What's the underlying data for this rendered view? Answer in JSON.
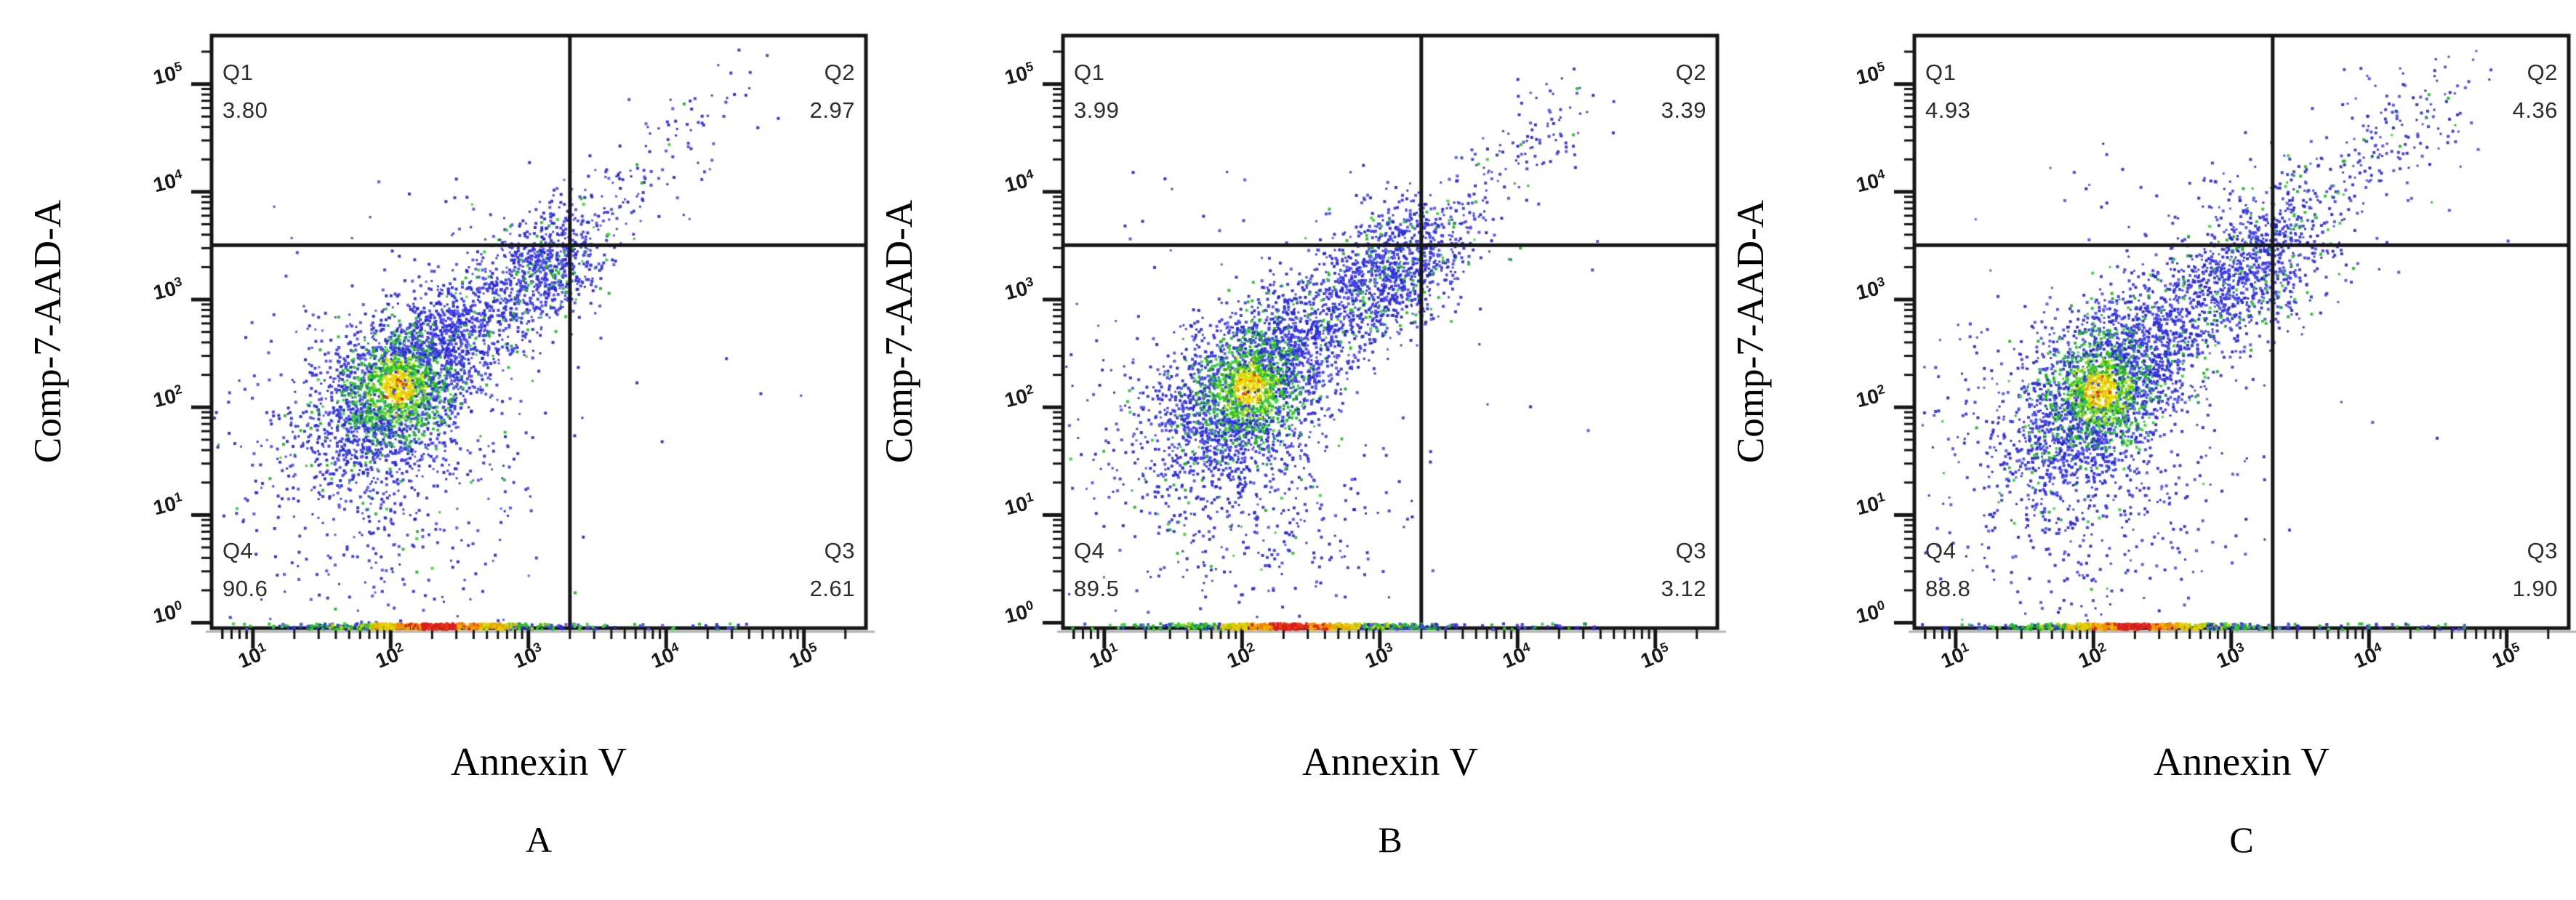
{
  "palette": {
    "blue": [
      "#2626ce",
      "#3b3be8",
      "#5151f2",
      "#2f2fdd"
    ],
    "green": [
      "#25c325",
      "#3ad43a",
      "#1eb41e"
    ],
    "hot_yellow": "#e6e600",
    "hot_orange": "#f0a000",
    "hot_deep_orange": "#f09a00",
    "hot_red": "#e03000",
    "rug_red": "#dc1e1e",
    "rug_orange": "#f08c00",
    "rug_yellow": "#e6d200",
    "line": "#161616",
    "axis_shadow": "#b4b4b4"
  },
  "panels": [
    {
      "letter": "A",
      "x_axis_label": "Annexin V",
      "y_axis_label": "Comp-7-AAD-A",
      "q1_label": "Q1",
      "q1_value": "3.80",
      "q2_label": "Q2",
      "q2_value": "2.97",
      "q3_label": "Q3",
      "q3_value": "2.61",
      "q4_label": "Q4",
      "q4_value": "90.6"
    },
    {
      "letter": "B",
      "x_axis_label": "Annexin V",
      "y_axis_label": "Comp-7-AAD-A",
      "q1_label": "Q1",
      "q1_value": "3.99",
      "q2_label": "Q2",
      "q2_value": "3.39",
      "q3_label": "Q3",
      "q3_value": "3.12",
      "q4_label": "Q4",
      "q4_value": "89.5"
    },
    {
      "letter": "C",
      "x_axis_label": "Annexin V",
      "y_axis_label": "Comp-7-AAD-A",
      "q1_label": "Q1",
      "q1_value": "4.93",
      "q2_label": "Q2",
      "q2_value": "4.36",
      "q3_label": "Q3",
      "q3_value": "1.90",
      "q4_label": "Q4",
      "q4_value": "88.8"
    }
  ],
  "chart_data": [
    {
      "type": "scatter",
      "panel": "A",
      "title": "",
      "xlabel": "Annexin V",
      "ylabel": "Comp-7-AAD-A",
      "x_scale": "log",
      "y_scale": "log",
      "tick_base": "10",
      "x_ticks": [
        1,
        2,
        3,
        4,
        5
      ],
      "y_ticks": [
        0,
        1,
        2,
        3,
        4,
        5
      ],
      "x_range_log": [
        0.7,
        5.45
      ],
      "y_range_log": [
        -0.05,
        5.45
      ],
      "gate_x": 2000,
      "gate_y": 3200,
      "quadrant_percent": {
        "Q1": 3.8,
        "Q2": 2.97,
        "Q3": 2.61,
        "Q4": 90.6
      },
      "seed": 101,
      "clusters": [
        {
          "kind": "core",
          "cx": 2.05,
          "cy": 2.18,
          "sx": 0.3,
          "sy": 0.4,
          "rho": 0.45,
          "n": 2600
        },
        {
          "kind": "blob",
          "cx": 2.1,
          "cy": 1.1,
          "sx": 0.5,
          "sy": 0.55,
          "rho": 0.15,
          "n": 380,
          "green": 0.06
        },
        {
          "kind": "blob",
          "cx": 1.3,
          "cy": 2.0,
          "sx": 0.42,
          "sy": 0.55,
          "rho": 0.2,
          "n": 130,
          "green": 0.08
        },
        {
          "kind": "stream",
          "x1": 2.4,
          "y1": 2.55,
          "x2": 3.28,
          "y2": 3.48,
          "jx": 0.2,
          "jy": 0.24,
          "n": 680,
          "green": 0.1
        },
        {
          "kind": "blob",
          "cx": 3.15,
          "cy": 3.33,
          "sx": 0.24,
          "sy": 0.3,
          "rho": 0.35,
          "n": 430,
          "green": 0.12
        },
        {
          "kind": "stream",
          "x1": 3.35,
          "y1": 3.6,
          "x2": 4.33,
          "y2": 4.78,
          "jx": 0.18,
          "jy": 0.18,
          "n": 120,
          "green": 0.06
        },
        {
          "kind": "blob",
          "cx": 4.5,
          "cy": 5.0,
          "sx": 0.25,
          "sy": 0.2,
          "rho": 0,
          "n": 8,
          "green": 0
        },
        {
          "kind": "uniform",
          "x1": 1.1,
          "y1": 3.55,
          "x2": 2.9,
          "y2": 4.15,
          "n": 12,
          "green": 0.05
        },
        {
          "kind": "uniform",
          "x1": 3.6,
          "y1": 1.6,
          "x2": 5.15,
          "y2": 3.9,
          "n": 5,
          "green": 0
        },
        {
          "kind": "rug",
          "cx": 2.35,
          "sx": 0.55,
          "n": 560
        },
        {
          "kind": "rugfar",
          "x1": 3.35,
          "x2": 4.6,
          "n": 30
        }
      ]
    },
    {
      "type": "scatter",
      "panel": "B",
      "title": "",
      "xlabel": "Annexin V",
      "ylabel": "Comp-7-AAD-A",
      "x_scale": "log",
      "y_scale": "log",
      "tick_base": "10",
      "x_ticks": [
        1,
        2,
        3,
        4,
        5
      ],
      "y_ticks": [
        0,
        1,
        2,
        3,
        4,
        5
      ],
      "x_range_log": [
        0.7,
        5.45
      ],
      "y_range_log": [
        -0.05,
        5.45
      ],
      "gate_x": 2000,
      "gate_y": 3200,
      "quadrant_percent": {
        "Q1": 3.99,
        "Q2": 3.39,
        "Q3": 3.12,
        "Q4": 89.5
      },
      "seed": 202,
      "clusters": [
        {
          "kind": "core",
          "cx": 2.05,
          "cy": 2.18,
          "sx": 0.3,
          "sy": 0.4,
          "rho": 0.45,
          "n": 2600
        },
        {
          "kind": "blob",
          "cx": 2.1,
          "cy": 1.1,
          "sx": 0.5,
          "sy": 0.55,
          "rho": 0.15,
          "n": 420,
          "green": 0.06
        },
        {
          "kind": "blob",
          "cx": 1.3,
          "cy": 2.0,
          "sx": 0.42,
          "sy": 0.55,
          "rho": 0.2,
          "n": 150,
          "green": 0.08
        },
        {
          "kind": "stream",
          "x1": 2.4,
          "y1": 2.55,
          "x2": 3.3,
          "y2": 3.5,
          "jx": 0.22,
          "jy": 0.26,
          "n": 800,
          "green": 0.1
        },
        {
          "kind": "blob",
          "cx": 3.18,
          "cy": 3.36,
          "sx": 0.26,
          "sy": 0.3,
          "rho": 0.35,
          "n": 500,
          "green": 0.12
        },
        {
          "kind": "stream",
          "x1": 3.35,
          "y1": 3.6,
          "x2": 4.4,
          "y2": 4.8,
          "jx": 0.18,
          "jy": 0.18,
          "n": 150,
          "green": 0.06
        },
        {
          "kind": "blob",
          "cx": 4.4,
          "cy": 4.95,
          "sx": 0.25,
          "sy": 0.2,
          "rho": 0,
          "n": 9,
          "green": 0
        },
        {
          "kind": "uniform",
          "x1": 1.1,
          "y1": 3.55,
          "x2": 2.95,
          "y2": 4.25,
          "n": 16,
          "green": 0.05
        },
        {
          "kind": "uniform",
          "x1": 3.6,
          "y1": 1.6,
          "x2": 5.15,
          "y2": 3.9,
          "n": 6,
          "green": 0
        },
        {
          "kind": "rug",
          "cx": 2.35,
          "sx": 0.55,
          "n": 560
        },
        {
          "kind": "rugfar",
          "x1": 3.35,
          "x2": 4.6,
          "n": 40
        }
      ]
    },
    {
      "type": "scatter",
      "panel": "C",
      "title": "",
      "xlabel": "Annexin V",
      "ylabel": "Comp-7-AAD-A",
      "x_scale": "log",
      "y_scale": "log",
      "tick_base": "10",
      "x_ticks": [
        1,
        2,
        3,
        4,
        5
      ],
      "y_ticks": [
        0,
        1,
        2,
        3,
        4,
        5
      ],
      "x_range_log": [
        0.7,
        5.45
      ],
      "y_range_log": [
        -0.05,
        5.45
      ],
      "gate_x": 2000,
      "gate_y": 3200,
      "quadrant_percent": {
        "Q1": 4.93,
        "Q2": 4.36,
        "Q3": 1.9,
        "Q4": 88.8
      },
      "seed": 303,
      "clusters": [
        {
          "kind": "core",
          "cx": 2.05,
          "cy": 2.15,
          "sx": 0.3,
          "sy": 0.42,
          "rho": 0.45,
          "n": 2520
        },
        {
          "kind": "blob",
          "cx": 2.05,
          "cy": 1.1,
          "sx": 0.5,
          "sy": 0.55,
          "rho": 0.15,
          "n": 400,
          "green": 0.06
        },
        {
          "kind": "blob",
          "cx": 1.35,
          "cy": 2.0,
          "sx": 0.42,
          "sy": 0.55,
          "rho": 0.2,
          "n": 150,
          "green": 0.08
        },
        {
          "kind": "stream",
          "x1": 2.4,
          "y1": 2.55,
          "x2": 3.35,
          "y2": 3.52,
          "jx": 0.24,
          "jy": 0.28,
          "n": 760,
          "green": 0.1
        },
        {
          "kind": "blob",
          "cx": 3.22,
          "cy": 3.38,
          "sx": 0.3,
          "sy": 0.36,
          "rho": 0.35,
          "n": 470,
          "green": 0.12
        },
        {
          "kind": "stream",
          "x1": 3.35,
          "y1": 3.6,
          "x2": 4.55,
          "y2": 4.95,
          "jx": 0.22,
          "jy": 0.22,
          "n": 230,
          "green": 0.06
        },
        {
          "kind": "blob",
          "cx": 4.35,
          "cy": 5.05,
          "sx": 0.3,
          "sy": 0.22,
          "rho": 0,
          "n": 14,
          "green": 0
        },
        {
          "kind": "uniform",
          "x1": 1.1,
          "y1": 3.55,
          "x2": 3.0,
          "y2": 4.45,
          "n": 22,
          "green": 0.05
        },
        {
          "kind": "uniform",
          "x1": 3.6,
          "y1": 1.6,
          "x2": 5.15,
          "y2": 3.9,
          "n": 6,
          "green": 0
        },
        {
          "kind": "rug",
          "cx": 2.3,
          "sx": 0.55,
          "n": 540
        },
        {
          "kind": "rugfar",
          "x1": 3.35,
          "x2": 4.7,
          "n": 40
        }
      ]
    }
  ]
}
